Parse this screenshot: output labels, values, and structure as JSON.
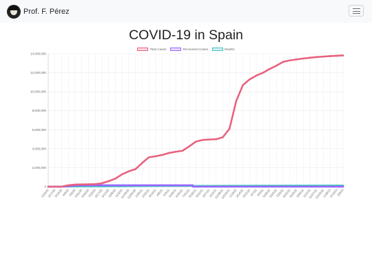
{
  "navbar": {
    "brand_name": "Prof. F. Pérez"
  },
  "chart_data": {
    "type": "line",
    "title": "COVID-19 in Spain",
    "xlabel": "",
    "ylabel": "",
    "ylim": [
      0,
      14000000
    ],
    "y_ticks": [
      "0",
      "2,000,000",
      "4,000,000",
      "6,000,000",
      "8,000,000",
      "10,000,000",
      "12,000,000",
      "14,000,000"
    ],
    "grid": true,
    "legend_position": "top",
    "x_tick_labels": [
      "1/22/20",
      "2/17/20",
      "3/14/20",
      "4/9/20",
      "5/5/20",
      "5/31/20",
      "6/26/20",
      "7/22/20",
      "8/17/20",
      "9/12/20",
      "10/8/20",
      "11/3/20",
      "11/29/20",
      "12/25/20",
      "1/20/21",
      "2/15/21",
      "3/13/21",
      "4/8/21",
      "5/4/21",
      "5/30/21",
      "6/25/21",
      "7/21/21",
      "8/16/21",
      "9/11/21",
      "10/7/21",
      "11/2/21",
      "11/28/21",
      "12/24/21",
      "1/19/22",
      "2/14/22",
      "3/12/22",
      "4/7/22",
      "5/3/22",
      "5/29/22",
      "6/24/22",
      "7/20/22",
      "8/15/22",
      "9/10/22",
      "10/6/22",
      "11/1/22",
      "11/27/22",
      "12/23/22",
      "1/18/23",
      "2/13/23",
      "3/9/23"
    ],
    "series": [
      {
        "name": "Total Cases",
        "color": "#e8627f",
        "points": [
          [
            "1/22/20",
            0
          ],
          [
            "3/14/20",
            6000
          ],
          [
            "4/9/20",
            150000
          ],
          [
            "5/5/20",
            220000
          ],
          [
            "5/31/20",
            240000
          ],
          [
            "6/26/20",
            248000
          ],
          [
            "7/22/20",
            270000
          ],
          [
            "8/17/20",
            360000
          ],
          [
            "9/12/20",
            580000
          ],
          [
            "10/8/20",
            850000
          ],
          [
            "11/3/20",
            1300000
          ],
          [
            "11/29/20",
            1620000
          ],
          [
            "12/25/20",
            1850000
          ],
          [
            "1/20/21",
            2500000
          ],
          [
            "2/15/21",
            3100000
          ],
          [
            "3/13/21",
            3200000
          ],
          [
            "4/8/21",
            3350000
          ],
          [
            "5/4/21",
            3550000
          ],
          [
            "5/30/21",
            3680000
          ],
          [
            "6/25/21",
            3780000
          ],
          [
            "7/21/21",
            4250000
          ],
          [
            "8/16/21",
            4750000
          ],
          [
            "9/11/21",
            4920000
          ],
          [
            "10/7/21",
            4970000
          ],
          [
            "11/2/21",
            5000000
          ],
          [
            "11/28/21",
            5200000
          ],
          [
            "12/24/21",
            6100000
          ],
          [
            "1/19/22",
            9000000
          ],
          [
            "2/14/22",
            10700000
          ],
          [
            "3/12/22",
            11300000
          ],
          [
            "4/7/22",
            11700000
          ],
          [
            "5/3/22",
            12000000
          ],
          [
            "5/29/22",
            12400000
          ],
          [
            "6/24/22",
            12750000
          ],
          [
            "7/20/22",
            13150000
          ],
          [
            "8/15/22",
            13300000
          ],
          [
            "9/10/22",
            13400000
          ],
          [
            "10/6/22",
            13500000
          ],
          [
            "11/1/22",
            13580000
          ],
          [
            "11/27/22",
            13650000
          ],
          [
            "12/23/22",
            13700000
          ],
          [
            "1/18/23",
            13750000
          ],
          [
            "2/13/23",
            13790000
          ],
          [
            "3/9/23",
            13820000
          ]
        ]
      },
      {
        "name": "Recovered Cases",
        "color": "#9966ff",
        "points": [
          [
            "1/22/20",
            0
          ],
          [
            "3/14/20",
            500
          ],
          [
            "4/9/20",
            50000
          ],
          [
            "5/5/20",
            120000
          ],
          [
            "5/31/20",
            150000
          ],
          [
            "6/26/20",
            150000
          ],
          [
            "8/4/21",
            150000
          ],
          [
            "8/5/21",
            0
          ],
          [
            "3/9/23",
            0
          ]
        ]
      },
      {
        "name": "Deaths",
        "color": "#4bc0c0",
        "points": [
          [
            "1/22/20",
            0
          ],
          [
            "4/9/20",
            15000
          ],
          [
            "5/5/20",
            25000
          ],
          [
            "11/3/20",
            38000
          ],
          [
            "1/20/21",
            55000
          ],
          [
            "2/15/21",
            68000
          ],
          [
            "6/25/21",
            80000
          ],
          [
            "1/19/22",
            92000
          ],
          [
            "4/7/22",
            104000
          ],
          [
            "9/10/22",
            113000
          ],
          [
            "3/9/23",
            119000
          ]
        ]
      }
    ]
  }
}
